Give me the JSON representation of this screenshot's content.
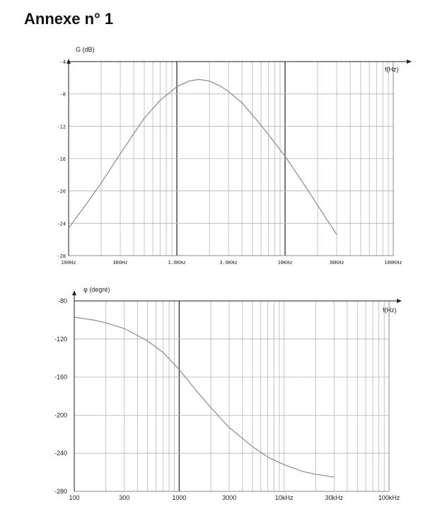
{
  "page": {
    "title": "Annexe n° 1"
  },
  "chart_data": [
    {
      "type": "line",
      "title": "",
      "ylabel": "G (dB)",
      "xlabel": "f(Hz)",
      "xscale": "log",
      "xlim": [
        100,
        100000
      ],
      "ylim": [
        -28,
        -4
      ],
      "yticks": [
        -4,
        -8,
        -12,
        -16,
        -20,
        -24,
        -28
      ],
      "ytick_labels": [
        "-4",
        "-8",
        "-12",
        "-16",
        "-20",
        "-24",
        "-28"
      ],
      "xticks": [
        100,
        300,
        1000,
        3000,
        10000,
        30000,
        100000
      ],
      "xtick_labels": [
        "100Hz",
        "300Hz",
        "1.0KHz",
        "3.0KHz",
        "10KHz",
        "30KHz",
        "100KHz"
      ],
      "emphasized_x": [
        1000,
        10000
      ],
      "grid": true,
      "color": "#8a8a8a",
      "series": [
        {
          "x": [
            100,
            150,
            200,
            300,
            500,
            700,
            1000,
            1300,
            1600,
            2000,
            2500,
            3000,
            4000,
            5000,
            7000,
            10000,
            15000,
            20000,
            30000
          ],
          "y": [
            -24.6,
            -21.4,
            -19.0,
            -15.4,
            -11.0,
            -8.8,
            -7.1,
            -6.4,
            -6.2,
            -6.4,
            -7.0,
            -7.7,
            -9.1,
            -10.6,
            -13.0,
            -15.7,
            -19.2,
            -21.8,
            -25.4
          ]
        }
      ]
    },
    {
      "type": "line",
      "title": "",
      "ylabel": "φ (degré)",
      "xlabel": "f(Hz)",
      "xscale": "log",
      "xlim": [
        100,
        100000
      ],
      "ylim": [
        -280,
        -80
      ],
      "yticks": [
        -80,
        -120,
        -160,
        -200,
        -240,
        -280
      ],
      "ytick_labels": [
        "-80",
        "-120",
        "-160",
        "-200",
        "-240",
        "-280"
      ],
      "xticks": [
        100,
        300,
        1000,
        3000,
        10000,
        30000,
        100000
      ],
      "xtick_labels": [
        "100",
        "300",
        "1000",
        "3000",
        "10kHz",
        "30kHz",
        "100kHz"
      ],
      "emphasized_x": [
        1000
      ],
      "grid": true,
      "color": "#8a8a8a",
      "series": [
        {
          "x": [
            100,
            150,
            200,
            300,
            500,
            700,
            1000,
            1500,
            2000,
            3000,
            5000,
            7000,
            10000,
            15000,
            20000,
            30000
          ],
          "y": [
            -97,
            -100,
            -103,
            -109,
            -122,
            -134,
            -152,
            -176,
            -192,
            -213,
            -233,
            -244,
            -252,
            -259,
            -262,
            -265
          ]
        }
      ]
    }
  ]
}
